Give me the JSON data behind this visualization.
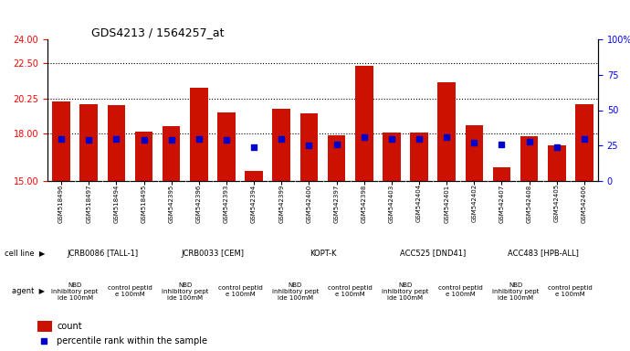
{
  "title": "GDS4213 / 1564257_at",
  "samples": [
    "GSM518496",
    "GSM518497",
    "GSM518494",
    "GSM518495",
    "GSM542395",
    "GSM542396",
    "GSM542393",
    "GSM542394",
    "GSM542399",
    "GSM542400",
    "GSM542397",
    "GSM542398",
    "GSM542403",
    "GSM542404",
    "GSM542401",
    "GSM542402",
    "GSM542407",
    "GSM542408",
    "GSM542405",
    "GSM542406"
  ],
  "count_values": [
    20.05,
    19.9,
    19.8,
    18.15,
    18.5,
    20.9,
    19.35,
    15.65,
    19.6,
    19.3,
    17.9,
    22.3,
    18.1,
    18.1,
    21.25,
    18.55,
    15.85,
    17.85,
    17.25,
    19.85
  ],
  "percentile_values": [
    30,
    29,
    30,
    29,
    29,
    30,
    29,
    24,
    30,
    25,
    26,
    31,
    30,
    30,
    31,
    27,
    26,
    28,
    24,
    30
  ],
  "ymin": 15,
  "ymax": 24,
  "yticks_left": [
    15,
    18,
    20.25,
    22.5,
    24
  ],
  "yticks_right": [
    0,
    25,
    50,
    75,
    100
  ],
  "ytick_right_labels": [
    "0",
    "25",
    "50",
    "75",
    "100%"
  ],
  "hlines": [
    18.0,
    20.25,
    22.5
  ],
  "bar_color": "#CC1100",
  "marker_color": "#0000CC",
  "cell_lines": [
    {
      "label": "JCRB0086 [TALL-1]",
      "start": 0,
      "end": 4,
      "color": "#90EE90"
    },
    {
      "label": "JCRB0033 [CEM]",
      "start": 4,
      "end": 8,
      "color": "#90EE90"
    },
    {
      "label": "KOPT-K",
      "start": 8,
      "end": 12,
      "color": "#90EE90"
    },
    {
      "label": "ACC525 [DND41]",
      "start": 12,
      "end": 16,
      "color": "#90EE90"
    },
    {
      "label": "ACC483 [HPB-ALL]",
      "start": 16,
      "end": 20,
      "color": "#90EE90"
    }
  ],
  "agents": [
    {
      "label": "NBD\ninhibitory pept\nide 100mM",
      "start": 0,
      "end": 2,
      "color": "#FF99FF"
    },
    {
      "label": "control peptid\ne 100mM",
      "start": 2,
      "end": 4,
      "color": "#CC88FF"
    },
    {
      "label": "NBD\ninhibitory pept\nide 100mM",
      "start": 4,
      "end": 6,
      "color": "#FF99FF"
    },
    {
      "label": "control peptid\ne 100mM",
      "start": 6,
      "end": 8,
      "color": "#CC88FF"
    },
    {
      "label": "NBD\ninhibitory pept\nide 100mM",
      "start": 8,
      "end": 10,
      "color": "#FF99FF"
    },
    {
      "label": "control peptid\ne 100mM",
      "start": 10,
      "end": 12,
      "color": "#CC88FF"
    },
    {
      "label": "NBD\ninhibitory pept\nide 100mM",
      "start": 12,
      "end": 14,
      "color": "#FF99FF"
    },
    {
      "label": "control peptid\ne 100mM",
      "start": 14,
      "end": 16,
      "color": "#CC88FF"
    },
    {
      "label": "NBD\ninhibitory pept\nide 100mM",
      "start": 16,
      "end": 18,
      "color": "#FF99FF"
    },
    {
      "label": "control peptid\ne 100mM",
      "start": 18,
      "end": 20,
      "color": "#CC88FF"
    }
  ]
}
